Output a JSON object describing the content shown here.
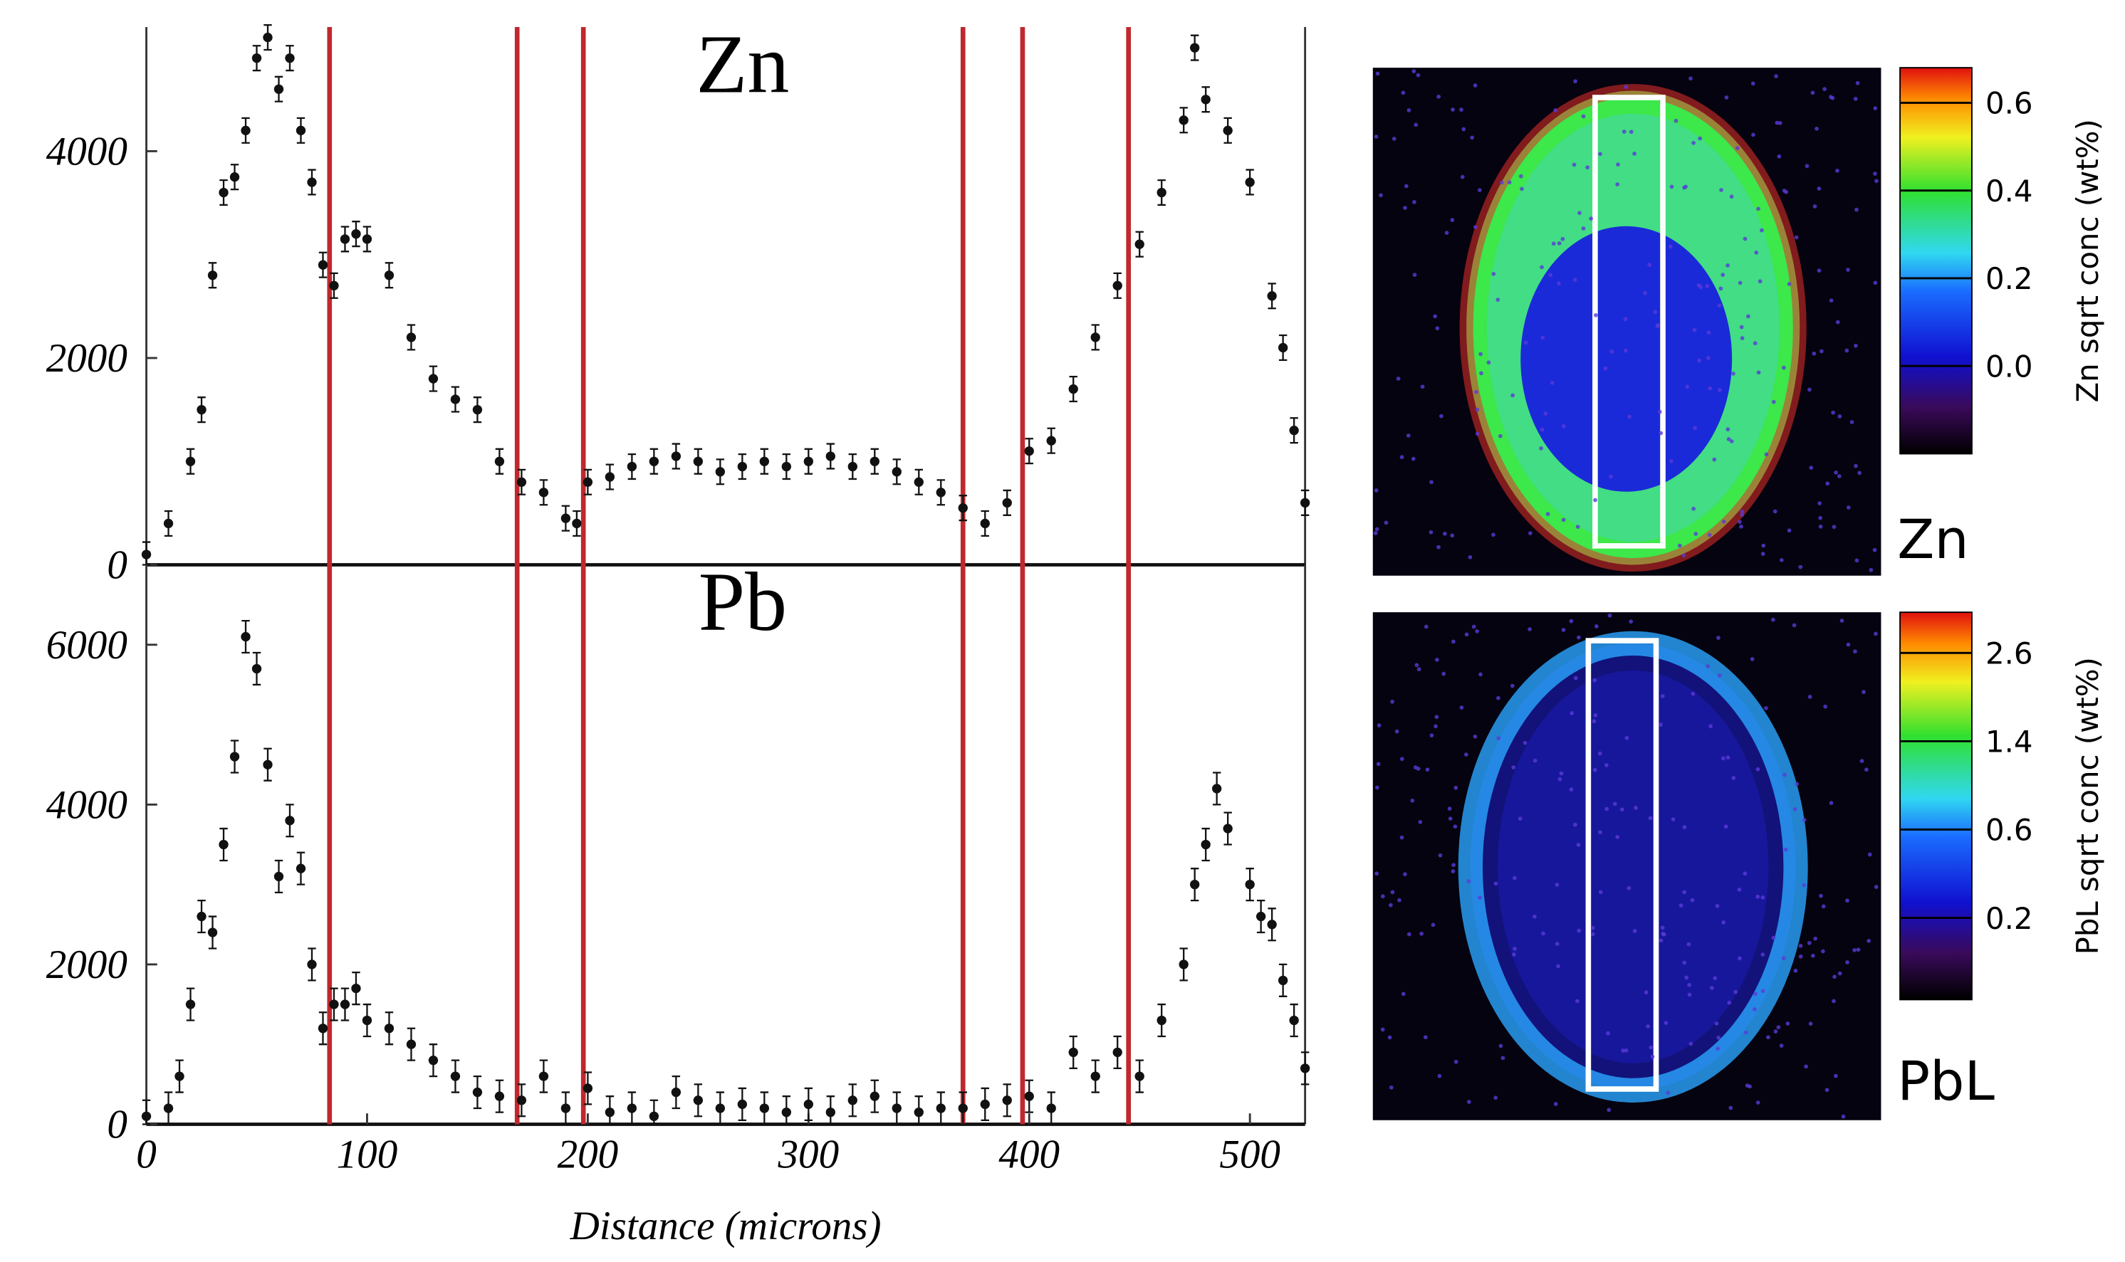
{
  "chart_data": [
    {
      "type": "scatter",
      "annotation": "Zn",
      "x": [
        0,
        10,
        20,
        25,
        30,
        35,
        40,
        45,
        50,
        55,
        60,
        65,
        70,
        75,
        80,
        85,
        90,
        95,
        100,
        110,
        120,
        130,
        140,
        150,
        160,
        170,
        180,
        190,
        195,
        200,
        210,
        220,
        230,
        240,
        250,
        260,
        270,
        280,
        290,
        300,
        310,
        320,
        330,
        340,
        350,
        360,
        370,
        380,
        390,
        400,
        410,
        420,
        430,
        440,
        450,
        460,
        470,
        475,
        480,
        490,
        500,
        510,
        515,
        520,
        525
      ],
      "series": [
        {
          "color": "#111111",
          "error": 120,
          "values": [
            100,
            400,
            1000,
            1500,
            2800,
            3600,
            3750,
            4200,
            4900,
            5100,
            4600,
            4900,
            4200,
            3700,
            2900,
            2700,
            3150,
            3200,
            3150,
            2800,
            2200,
            1800,
            1600,
            1500,
            1000,
            800,
            700,
            450,
            400,
            800,
            850,
            950,
            1000,
            1050,
            1000,
            900,
            950,
            1000,
            950,
            1000,
            1050,
            950,
            1000,
            900,
            800,
            700,
            550,
            400,
            600,
            1100,
            1200,
            1700,
            2200,
            2700,
            3100,
            3600,
            4300,
            5000,
            4500,
            4200,
            3700,
            2600,
            2100,
            1300,
            600
          ]
        }
      ],
      "xlim": [
        0,
        525
      ],
      "ylim": [
        0,
        5200
      ],
      "yticks": [
        0,
        2000,
        4000
      ],
      "vlines": {
        "color": "#c0282d",
        "x": [
          83,
          168,
          198,
          370,
          397,
          445
        ]
      }
    },
    {
      "type": "scatter",
      "annotation": "Pb",
      "x_label": "Distance (microns)",
      "x": [
        0,
        10,
        15,
        20,
        25,
        30,
        35,
        40,
        45,
        50,
        55,
        60,
        65,
        70,
        75,
        80,
        85,
        90,
        95,
        100,
        110,
        120,
        130,
        140,
        150,
        160,
        170,
        180,
        190,
        200,
        210,
        220,
        230,
        240,
        250,
        260,
        270,
        280,
        290,
        300,
        310,
        320,
        330,
        340,
        350,
        360,
        370,
        380,
        390,
        400,
        410,
        420,
        430,
        440,
        450,
        460,
        470,
        475,
        480,
        485,
        490,
        500,
        505,
        510,
        515,
        520,
        525
      ],
      "series": [
        {
          "color": "#111111",
          "error": 200,
          "values": [
            100,
            200,
            600,
            1500,
            2600,
            2400,
            3500,
            4600,
            6100,
            5700,
            4500,
            3100,
            3800,
            3200,
            2000,
            1200,
            1500,
            1500,
            1700,
            1300,
            1200,
            1000,
            800,
            600,
            400,
            350,
            300,
            600,
            200,
            450,
            150,
            200,
            100,
            400,
            300,
            200,
            250,
            200,
            150,
            250,
            150,
            300,
            350,
            200,
            150,
            200,
            200,
            250,
            300,
            350,
            200,
            900,
            600,
            900,
            600,
            1300,
            2000,
            3000,
            3500,
            4200,
            3700,
            3000,
            2600,
            2500,
            1800,
            1300,
            700
          ]
        }
      ],
      "xlim": [
        0,
        525
      ],
      "xticks": [
        0,
        100,
        200,
        300,
        400,
        500
      ],
      "ylim": [
        0,
        7000
      ],
      "yticks": [
        0,
        2000,
        4000,
        6000
      ],
      "vlines": {
        "color": "#c0282d",
        "x": [
          83,
          168,
          198,
          370,
          397,
          445
        ]
      }
    },
    {
      "type": "heatmap",
      "label": "Zn",
      "colorbar": {
        "label": "Zn sqrt conc (wt%)",
        "clim": [
          -0.2,
          0.68
        ],
        "ticks": [
          0.6,
          0.4,
          0.2,
          {
            "value": 0,
            "label": "0.0"
          }
        ]
      }
    },
    {
      "type": "heatmap",
      "label": "PbL",
      "colorbar": {
        "label": "PbL sqrt conc (wt%)",
        "ticks": [
          2.6,
          1.4,
          0.6,
          0.2
        ]
      }
    }
  ]
}
